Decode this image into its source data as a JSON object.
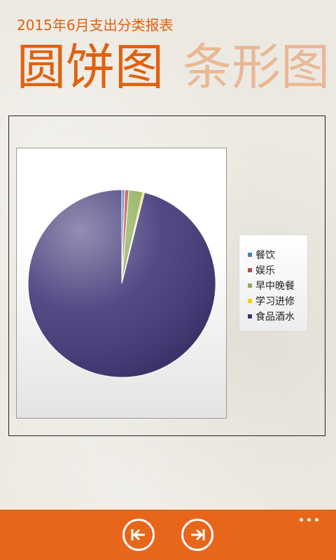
{
  "header": {
    "subtitle": "2015年6月支出分类报表"
  },
  "pivot": {
    "tabs": [
      {
        "label": "圆饼图",
        "active": true
      },
      {
        "label": "条形图",
        "active": false
      }
    ]
  },
  "chart_data": {
    "type": "pie",
    "title": "",
    "categories": [
      "餐饮",
      "娱乐",
      "早中晚餐",
      "学习进修",
      "食品酒水"
    ],
    "values": [
      0.5,
      0.7,
      2.4,
      0.3,
      96.1
    ],
    "colors": [
      "#4a7ebb",
      "#be4b48",
      "#8dac58",
      "#f3d100",
      "#3b3274"
    ],
    "legend_position": "right"
  },
  "app_bar": {
    "buttons": [
      {
        "name": "previous",
        "icon": "skip-previous-icon"
      },
      {
        "name": "next",
        "icon": "skip-next-icon"
      }
    ],
    "more_icon": "more-dots-icon",
    "color": "#e8661a"
  }
}
